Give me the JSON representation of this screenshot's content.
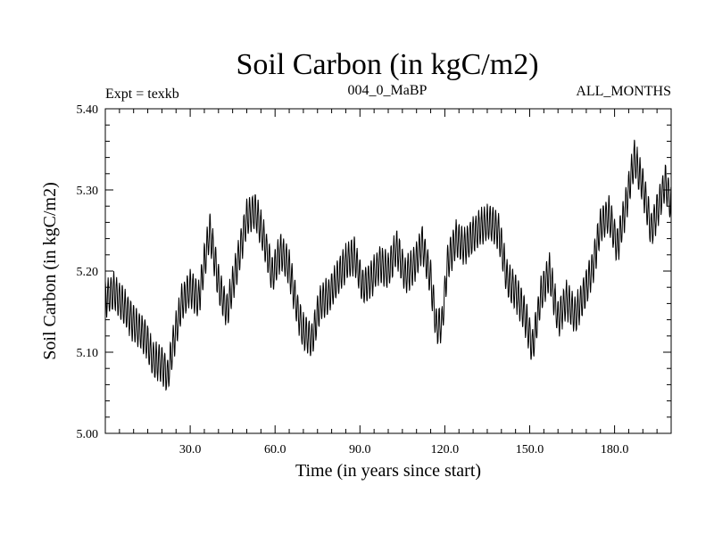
{
  "chart_data": {
    "type": "line",
    "title": "Soil Carbon (in kgC/m2)",
    "subtitle_left": "Expt = texkb",
    "subtitle_center": "004_0_MaBP",
    "subtitle_right": "ALL_MONTHS",
    "xlabel": "Time (in years since start)",
    "ylabel": "Soil Carbon (in kgC/m2)",
    "xlim": [
      0,
      200
    ],
    "ylim": [
      5.0,
      5.4
    ],
    "x_ticks": [
      30,
      60,
      90,
      120,
      150,
      180
    ],
    "x_tick_labels": [
      "30.0",
      "60.0",
      "90.0",
      "120.0",
      "150.0",
      "180.0"
    ],
    "y_ticks": [
      5.0,
      5.1,
      5.2,
      5.3,
      5.4
    ],
    "y_tick_labels": [
      "5.00",
      "5.10",
      "5.20",
      "5.30",
      "5.40"
    ],
    "series": [
      {
        "name": "Soil Carbon",
        "seasonal_amplitude": 0.022,
        "trend": {
          "x": [
            0,
            3,
            6,
            10,
            14,
            17,
            20,
            22,
            24,
            27,
            30,
            33,
            35,
            37,
            40,
            43,
            47,
            50,
            53,
            56,
            59,
            62,
            65,
            68,
            70,
            73,
            76,
            79,
            82,
            85,
            88,
            91,
            94,
            97,
            100,
            103,
            106,
            109,
            112,
            115,
            117,
            119,
            121,
            124,
            127,
            130,
            133,
            136,
            139,
            142,
            145,
            148,
            151,
            154,
            157,
            160,
            163,
            166,
            169,
            172,
            175,
            178,
            181,
            184,
            187,
            190,
            193,
            196,
            198,
            200
          ],
          "y": [
            5.165,
            5.175,
            5.16,
            5.135,
            5.12,
            5.09,
            5.085,
            5.07,
            5.11,
            5.16,
            5.18,
            5.165,
            5.21,
            5.25,
            5.185,
            5.15,
            5.215,
            5.265,
            5.275,
            5.24,
            5.195,
            5.225,
            5.205,
            5.15,
            5.125,
            5.115,
            5.16,
            5.17,
            5.19,
            5.21,
            5.22,
            5.18,
            5.19,
            5.21,
            5.2,
            5.23,
            5.195,
            5.205,
            5.235,
            5.19,
            5.13,
            5.135,
            5.21,
            5.24,
            5.23,
            5.245,
            5.255,
            5.26,
            5.25,
            5.19,
            5.175,
            5.15,
            5.105,
            5.17,
            5.2,
            5.14,
            5.165,
            5.145,
            5.17,
            5.2,
            5.255,
            5.27,
            5.23,
            5.28,
            5.34,
            5.305,
            5.25,
            5.285,
            5.31,
            5.28
          ]
        }
      }
    ]
  }
}
